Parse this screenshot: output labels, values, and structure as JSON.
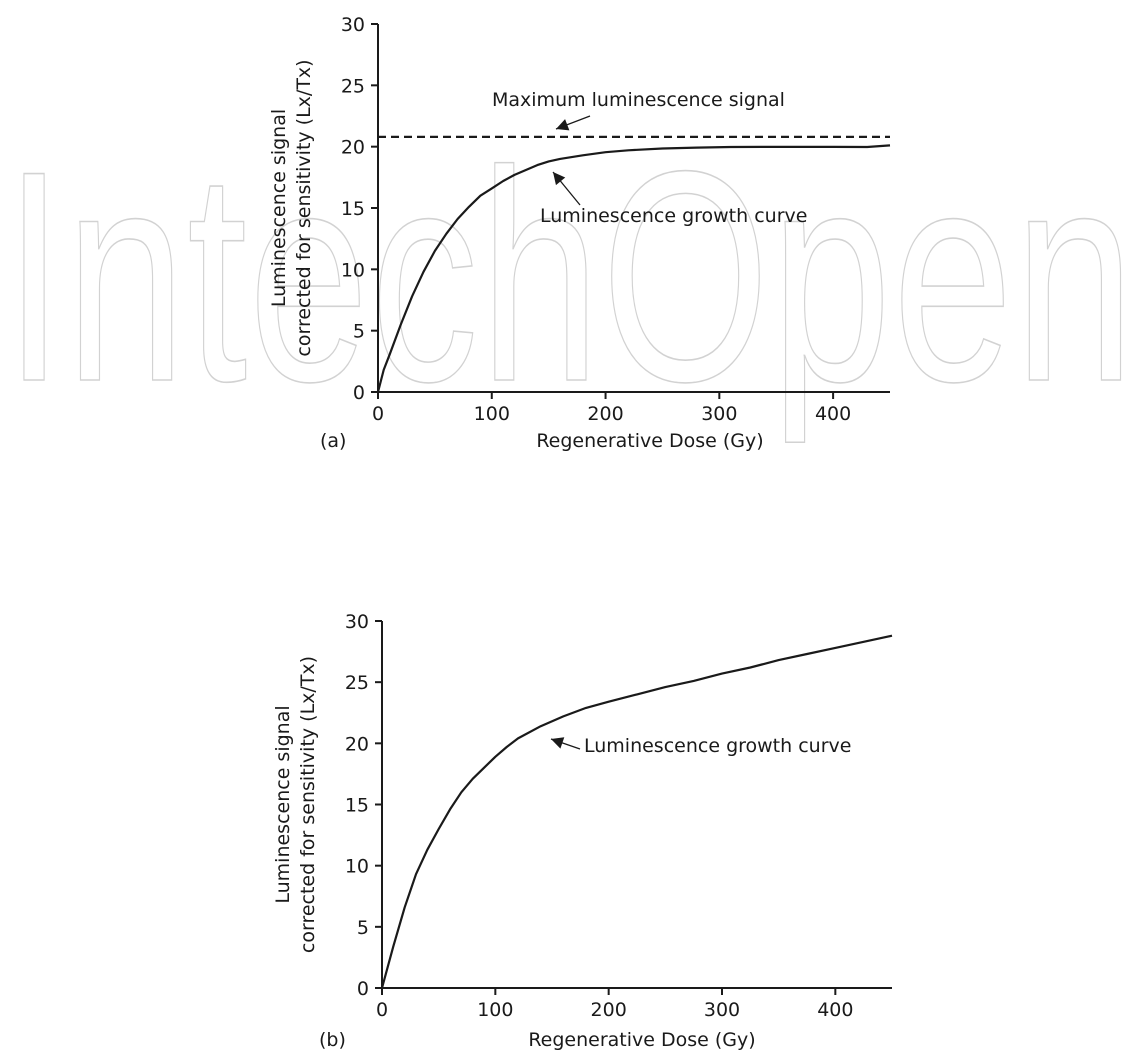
{
  "watermark": "IntechOpen",
  "chart_data": [
    {
      "type": "line",
      "panel_label": "(a)",
      "xlabel": "Regenerative Dose (Gy)",
      "ylabel_lines": [
        "Luminescence signal",
        "corrected for sensitivity (Lx/Tx)"
      ],
      "xlim": [
        0,
        450
      ],
      "ylim": [
        0,
        30
      ],
      "xticks": [
        0,
        100,
        200,
        300,
        400
      ],
      "yticks": [
        0,
        5,
        10,
        15,
        20,
        25,
        30
      ],
      "grid": false,
      "legend": "none",
      "series": [
        {
          "style": "solid",
          "x": [
            0,
            5,
            10,
            20,
            30,
            40,
            50,
            60,
            70,
            80,
            90,
            100,
            110,
            120,
            130,
            140,
            150,
            160,
            180,
            200,
            220,
            250,
            280,
            310,
            340,
            370,
            400,
            430,
            450
          ],
          "y": [
            0,
            1.8,
            3.0,
            5.5,
            7.8,
            9.8,
            11.5,
            12.9,
            14.1,
            15.1,
            16.0,
            16.6,
            17.2,
            17.7,
            18.1,
            18.5,
            18.8,
            19.0,
            19.3,
            19.55,
            19.7,
            19.85,
            19.92,
            19.97,
            19.98,
            19.98,
            19.98,
            19.97,
            20.1
          ]
        },
        {
          "style": "dashed",
          "x": [
            0,
            450
          ],
          "y": [
            20.8,
            20.8
          ]
        }
      ],
      "annotations": [
        {
          "text": "Maximum luminescence signal",
          "point": [
            155,
            20.8
          ]
        },
        {
          "text": "Luminescence growth curve",
          "point": [
            150,
            18.6
          ]
        }
      ]
    },
    {
      "type": "line",
      "panel_label": "(b)",
      "xlabel": "Regenerative Dose (Gy)",
      "ylabel_lines": [
        "Luminescence signal",
        "corrected for sensitivity (Lx/Tx)"
      ],
      "xlim": [
        0,
        450
      ],
      "ylim": [
        0,
        30
      ],
      "xticks": [
        0,
        100,
        200,
        300,
        400
      ],
      "yticks": [
        0,
        5,
        10,
        15,
        20,
        25,
        30
      ],
      "grid": false,
      "legend": "none",
      "series": [
        {
          "style": "solid",
          "x": [
            0,
            10,
            20,
            30,
            40,
            50,
            60,
            70,
            80,
            90,
            100,
            110,
            120,
            140,
            160,
            180,
            200,
            225,
            250,
            275,
            300,
            325,
            350,
            375,
            400,
            425,
            450
          ],
          "y": [
            0,
            3.4,
            6.6,
            9.3,
            11.3,
            13.0,
            14.6,
            16.0,
            17.1,
            18.0,
            18.9,
            19.7,
            20.4,
            21.4,
            22.2,
            22.9,
            23.4,
            24.0,
            24.6,
            25.1,
            25.7,
            26.2,
            26.8,
            27.3,
            27.8,
            28.3,
            28.8
          ]
        }
      ],
      "annotations": [
        {
          "text": "Luminescence growth curve",
          "point": [
            148,
            21.0
          ]
        }
      ]
    }
  ]
}
